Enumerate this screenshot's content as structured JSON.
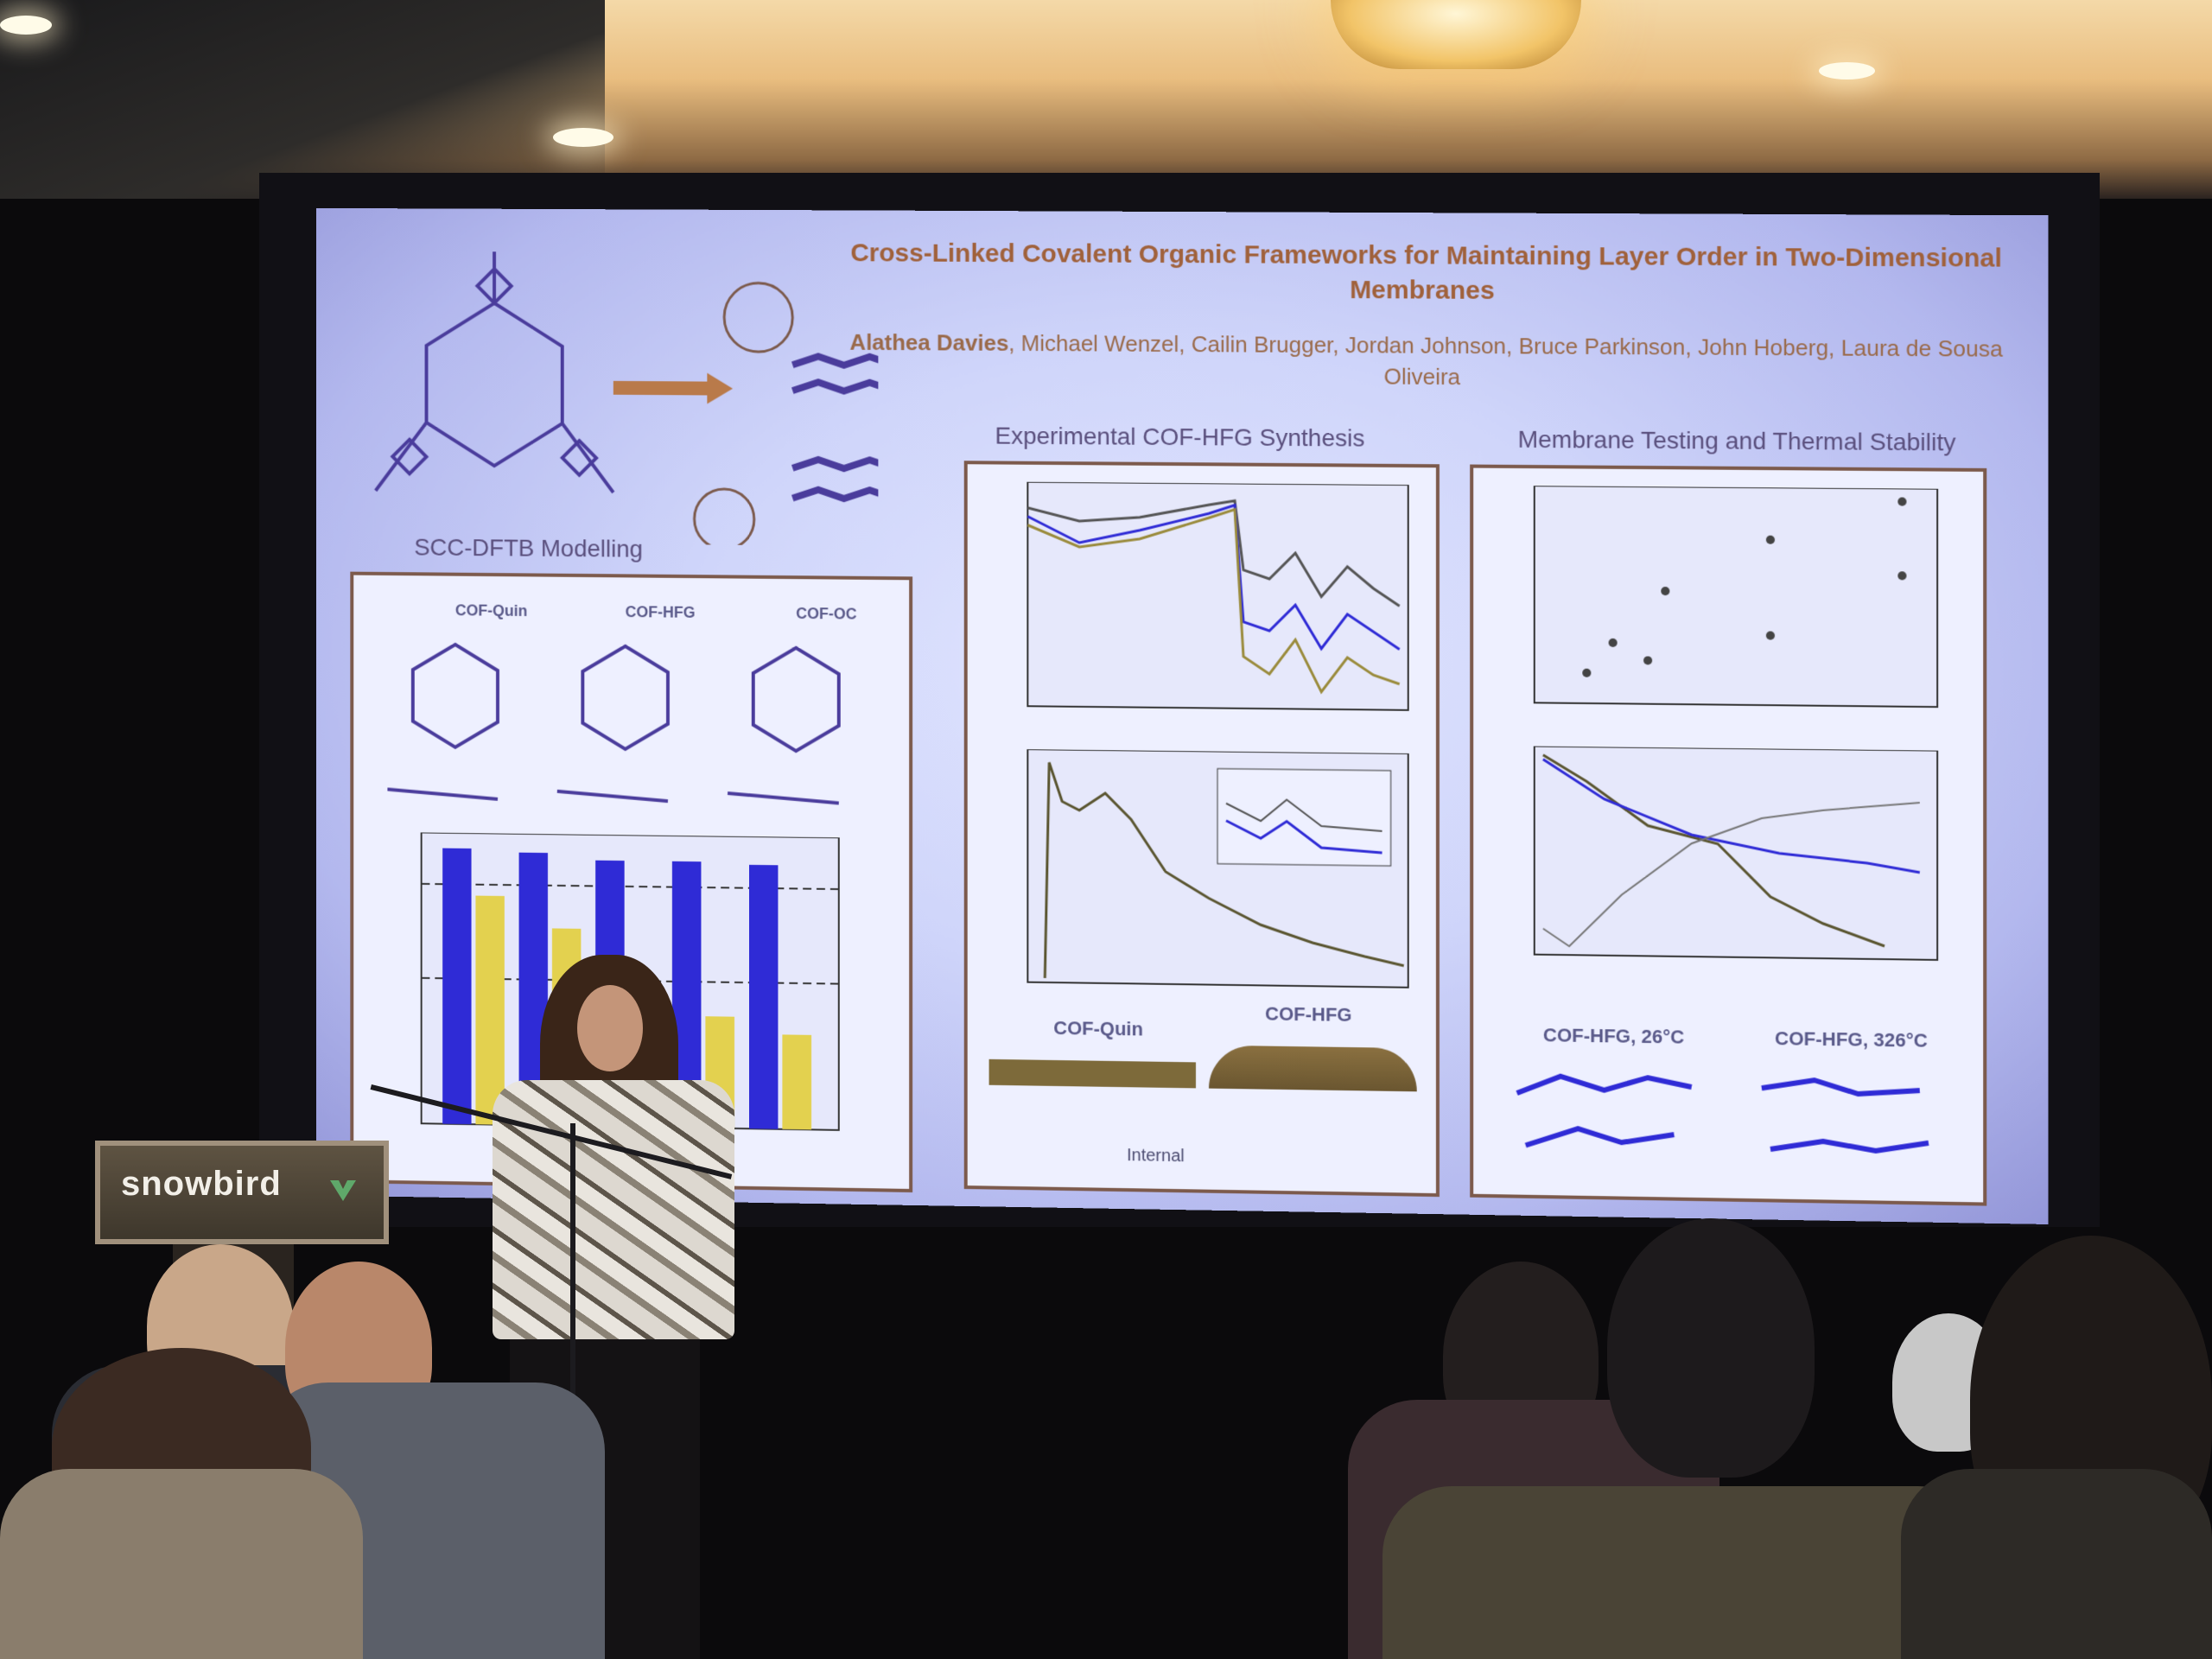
{
  "poster": {
    "title": "Cross-Linked Covalent Organic Frameworks for Maintaining Layer Order in Two-Dimensional Membranes",
    "authors_lead": "Alathea Davies",
    "authors_rest": ", Michael Wenzel, Cailin Brugger, Jordan Johnson, Bruce Parkinson, John Hoberg, Laura de Sousa Oliveira",
    "sections": {
      "modelling": "SCC-DFTB Modelling",
      "synthesis": "Experimental COF-HFG Synthesis",
      "membrane": "Membrane Testing and Thermal Stability"
    },
    "structures": [
      "COF-Quin",
      "COF-HFG",
      "COF-OC"
    ],
    "synthesis_images": [
      "COF-Quin",
      "COF-HFG"
    ],
    "thermal_images": [
      "COF-HFG, 26°C",
      "COF-HFG, 326°C"
    ],
    "footer": "Internal"
  },
  "podium": {
    "brand": "snowbird"
  },
  "colors": {
    "title": "#a0613b",
    "screen": "#cfd5fa",
    "bar_blue": "#2f2bd6",
    "bar_yellow": "#e3d14f",
    "panel_border": "#7c5a4c"
  }
}
